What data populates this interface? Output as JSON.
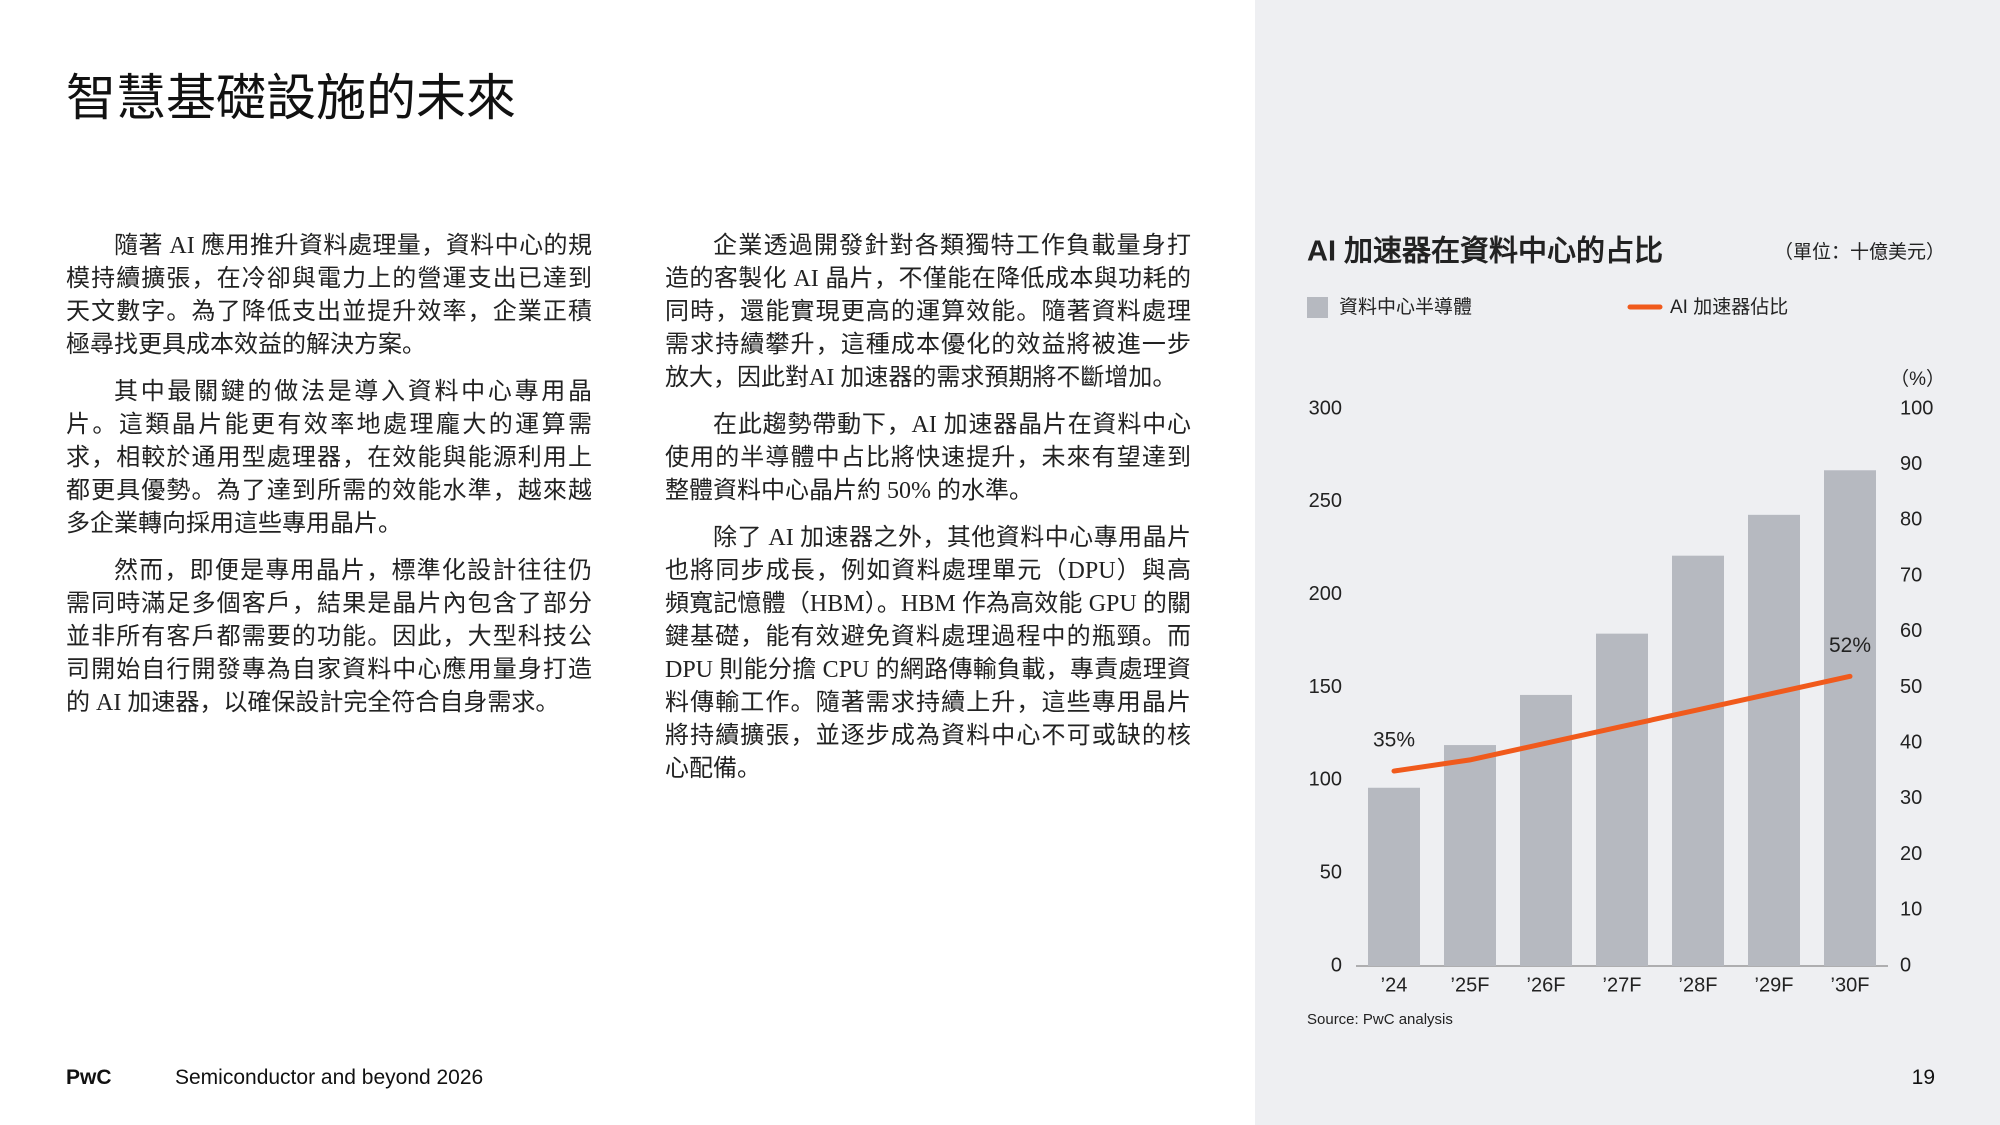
{
  "header": {
    "title": "智慧基礎設施的未來"
  },
  "columns": [
    {
      "paragraphs": [
        "隨著 AI 應用推升資料處理量，資料中心的規模持續擴張，在冷卻與電力上的營運支出已達到天文數字。為了降低支出並提升效率，企業正積極尋找更具成本效益的解決方案。",
        "其中最關鍵的做法是導入資料中心專用晶片。這類晶片能更有效率地處理龐大的運算需求，相較於通用型處理器，在效能與能源利用上都更具優勢。為了達到所需的效能水準，越來越多企業轉向採用這些專用晶片。",
        "然而，即便是專用晶片，標準化設計往往仍需同時滿足多個客戶，結果是晶片內包含了部分並非所有客戶都需要的功能。因此，大型科技公司開始自行開發專為自家資料中心應用量身打造的 AI 加速器，以確保設計完全符合自身需求。"
      ]
    },
    {
      "paragraphs": [
        "企業透過開發針對各類獨特工作負載量身打造的客製化 AI 晶片，不僅能在降低成本與功耗的同時，還能實現更高的運算效能。隨著資料處理需求持續攀升，這種成本優化的效益將被進一步放大，因此對AI 加速器的需求預期將不斷增加。",
        "在此趨勢帶動下，AI 加速器晶片在資料中心使用的半導體中占比將快速提升，未來有望達到整體資料中心晶片約 50% 的水準。",
        "除了 AI 加速器之外，其他資料中心專用晶片也將同步成長，例如資料處理單元（DPU）與高頻寬記憶體（HBM）。HBM 作為高效能 GPU 的關鍵基礎，能有效避免資料處理過程中的瓶頸。而 DPU 則能分擔 CPU 的網路傳輸負載，專責處理資料傳輸工作。隨著需求持續上升，這些專用晶片將持續擴張，並逐步成為資料中心不可或缺的核心配備。"
      ]
    }
  ],
  "chart_data": {
    "type": "bar",
    "title": "AI 加速器在資料中心的占比",
    "unit": "（單位：十億美元）",
    "y2_unit": "（%）",
    "categories": [
      "’24",
      "’25F",
      "’26F",
      "’27F",
      "’28F",
      "’29F",
      "’30F"
    ],
    "series": [
      {
        "name": "資料中心半導體",
        "color": "#b6b9c0",
        "values": [
          96,
          119,
          146,
          179,
          221,
          243,
          267
        ]
      },
      {
        "name": "AI 加速器佔比",
        "type": "line",
        "axis": "y2",
        "color": "#f05a1c",
        "values": [
          35,
          37,
          40,
          43,
          46,
          49,
          52
        ],
        "value_labels": [
          "35%",
          null,
          null,
          null,
          null,
          null,
          "52%"
        ]
      }
    ],
    "ylim": [
      0,
      300
    ],
    "yticks": [
      0,
      50,
      100,
      150,
      200,
      250,
      300
    ],
    "y2lim": [
      0,
      100
    ],
    "y2ticks": [
      0,
      10,
      20,
      30,
      40,
      50,
      60,
      70,
      80,
      90,
      100
    ],
    "source": "Source: PwC analysis"
  },
  "footer": {
    "brand": "PwC",
    "publication": "Semiconductor and beyond 2026",
    "page": 19
  }
}
